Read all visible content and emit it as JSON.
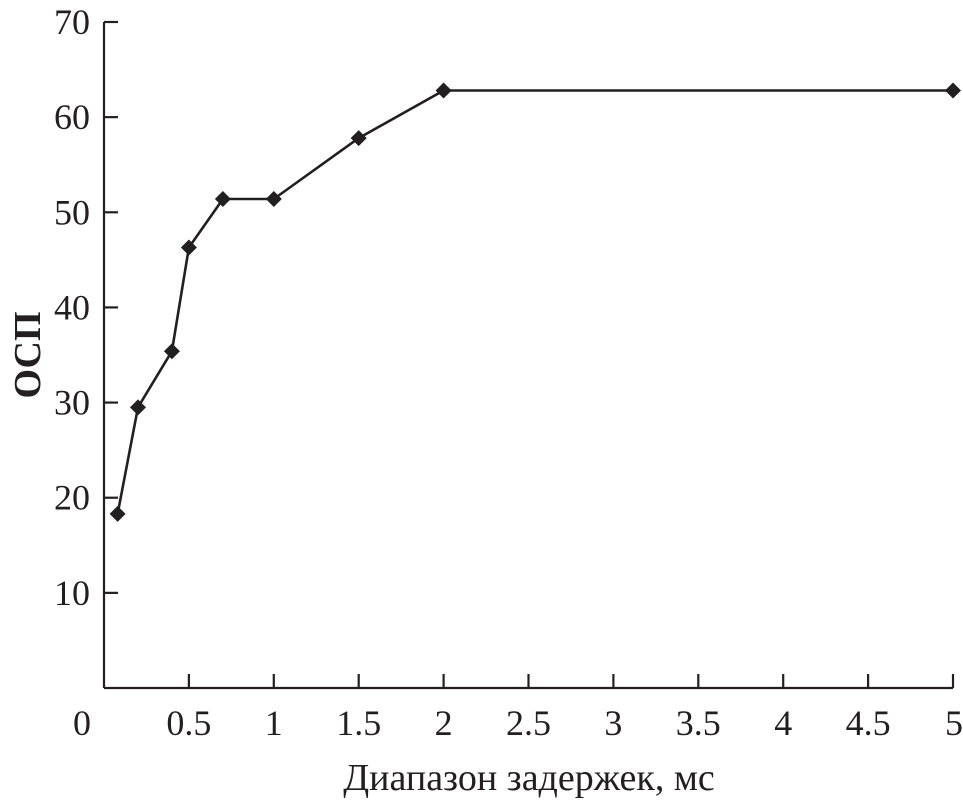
{
  "chart_data": {
    "type": "line",
    "title": "",
    "xlabel": "Диапазон задержек, мс",
    "ylabel": "ОСП",
    "xlim": [
      0,
      5
    ],
    "ylim": [
      0,
      70
    ],
    "x_ticks": [
      0,
      0.5,
      1,
      1.5,
      2,
      2.5,
      3,
      3.5,
      4,
      4.5,
      5
    ],
    "x_tick_labels": [
      "0",
      "0.5",
      "1",
      "1.5",
      "2",
      "2.5",
      "3",
      "3.5",
      "4",
      "4.5",
      "5"
    ],
    "y_ticks": [
      10,
      20,
      30,
      40,
      50,
      60,
      70
    ],
    "y_tick_labels": [
      "10",
      "20",
      "30",
      "40",
      "50",
      "60",
      "70"
    ],
    "grid": false,
    "legend": "none",
    "marker": "diamond",
    "line_color": "#231f20",
    "series": [
      {
        "x": [
          0.08,
          0.2,
          0.4,
          0.5,
          0.7,
          1.0,
          1.5,
          2.0,
          5.0
        ],
        "y": [
          18.3,
          29.5,
          35.4,
          46.3,
          51.4,
          51.4,
          57.8,
          62.8,
          62.8
        ]
      }
    ]
  }
}
